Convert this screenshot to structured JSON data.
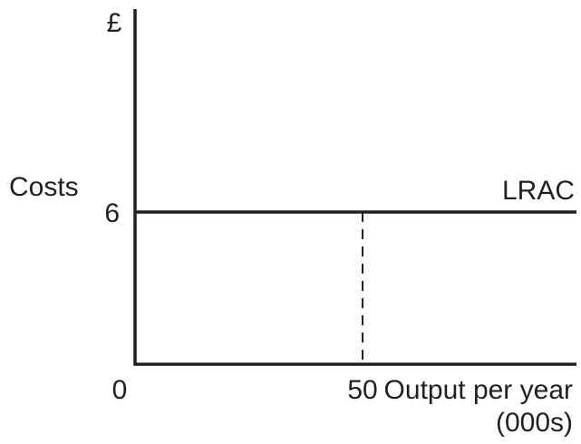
{
  "chart_data": {
    "type": "line",
    "title": "",
    "ylabel": "Costs",
    "yunit": "£",
    "xlabel": "Output per year",
    "xunit": "(000s)",
    "origin_label": "0",
    "xlim": [
      0,
      97
    ],
    "ylim": [
      0,
      14
    ],
    "series": [
      {
        "name": "LRAC",
        "x": [
          0,
          97
        ],
        "y": [
          6,
          6
        ]
      }
    ],
    "reference_lines": [
      {
        "style": "dashed",
        "x": 50,
        "y_from": 0,
        "y_to": 6
      }
    ],
    "x_ticks": [
      {
        "value": 50,
        "label": "50"
      }
    ],
    "y_ticks": [
      {
        "value": 6,
        "label": "6"
      }
    ],
    "grid": false,
    "colors": {
      "ink": "#231f20"
    }
  }
}
